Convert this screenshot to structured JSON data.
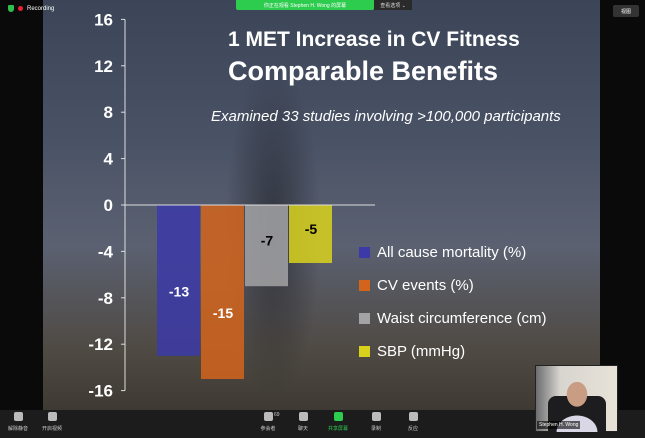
{
  "zoom": {
    "recording_label": "Recording",
    "banner": "你正在观看 Stephen H. Wong 的屏幕",
    "view_options": "查看选项 ⌄",
    "view_button": "视图",
    "toolbar": [
      {
        "label": "解除静音",
        "icon": "mic-muted-icon"
      },
      {
        "label": "开启视频",
        "icon": "video-off-icon"
      },
      {
        "label": "参会者",
        "icon": "participants-icon",
        "count": "69"
      },
      {
        "label": "聊天",
        "icon": "chat-icon"
      },
      {
        "label": "共享屏幕",
        "icon": "share-screen-icon",
        "color": "#2dcc4e"
      },
      {
        "label": "录制",
        "icon": "record-icon"
      },
      {
        "label": "反应",
        "icon": "reaction-icon"
      }
    ],
    "video_name": "Stephen H. Wong"
  },
  "slide": {
    "title_line1": "1 MET Increase in CV Fitness",
    "title_line2": "Comparable Benefits",
    "subtitle": "Examined 33 studies involving >100,000 participants"
  },
  "chart_data": {
    "type": "bar",
    "categories": [
      "All cause mortality (%)",
      "CV events (%)",
      "Waist circumference (cm)",
      "SBP (mmHg)"
    ],
    "values": [
      -13,
      -15,
      -7,
      -5
    ],
    "colors": [
      "#3c3aa8",
      "#d3641c",
      "#a3a3a6",
      "#d9d21c"
    ],
    "ylim": [
      -16,
      16
    ],
    "yticks": [
      "16",
      "12",
      "8",
      "4",
      "0",
      "-4",
      "-8",
      "-12",
      "-16"
    ],
    "legend": "right",
    "data_labels": [
      "-13",
      "-15",
      "-7",
      "-5"
    ]
  }
}
